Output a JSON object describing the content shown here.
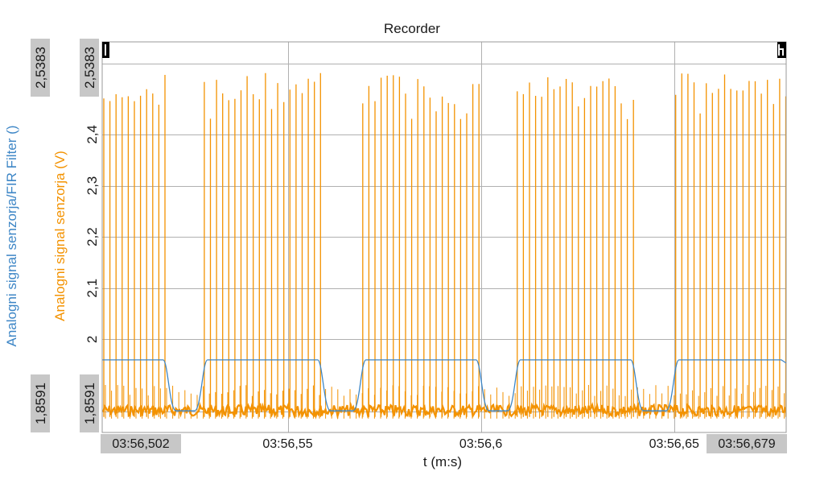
{
  "window": {
    "title": "Recorder"
  },
  "colors": {
    "series_voltage": "#f39200",
    "series_filter": "#3d86c6",
    "grid": "#b0b0b0",
    "badge": "#c7c7c7"
  },
  "icons": {
    "left_cursor": "left-cursor-marker-icon",
    "right_cursor": "right-cursor-marker-icon"
  },
  "chart_data": {
    "type": "line",
    "title": "Recorder",
    "xlabel": "t (m:s)",
    "y_axes": [
      {
        "label": "Analogni signal senzorja (V)",
        "color": "#f39200",
        "range": [
          1.8591,
          2.5383
        ]
      },
      {
        "label": "Analogni signal senzorja/FIR Filter ()",
        "color": "#3d86c6",
        "range": [
          1.8591,
          2.5383
        ]
      }
    ],
    "ylim": [
      1.8591,
      2.5383
    ],
    "y_ticks": [
      "2",
      "2,1",
      "2,2",
      "2,3",
      "2,4"
    ],
    "y_range_labels": {
      "min": "1,8591",
      "max": "2,5383"
    },
    "xlim": [
      "03:56,502",
      "03:56,679"
    ],
    "x_ticks": [
      "03:56,55",
      "03:56,6",
      "03:56,65"
    ],
    "x_range_labels": {
      "min": "03:56,502",
      "max": "03:56,679"
    },
    "grid": true,
    "series": [
      {
        "name": "Analogni signal senzorja (V)",
        "color": "#f39200",
        "style": "pulse bursts",
        "baseline": 1.861,
        "peak": 2.52,
        "bursts": [
          [
            "03:56,502",
            "03:56,519"
          ],
          [
            "03:56,528",
            "03:56,559"
          ],
          [
            "03:56,569",
            "03:56,600"
          ],
          [
            "03:56,609",
            "03:56,640"
          ],
          [
            "03:56,650",
            "03:56,679"
          ]
        ]
      },
      {
        "name": "Analogni signal senzorja/FIR Filter ()",
        "color": "#3d86c6",
        "style": "smoothed envelope",
        "high": 1.9599,
        "low": 1.8606,
        "high_intervals": [
          [
            "03:56,502",
            "03:56,519"
          ],
          [
            "03:56,528",
            "03:56,559"
          ],
          [
            "03:56,569",
            "03:56,600"
          ],
          [
            "03:56,609",
            "03:56,640"
          ],
          [
            "03:56,650",
            "03:56,679"
          ]
        ]
      }
    ]
  }
}
